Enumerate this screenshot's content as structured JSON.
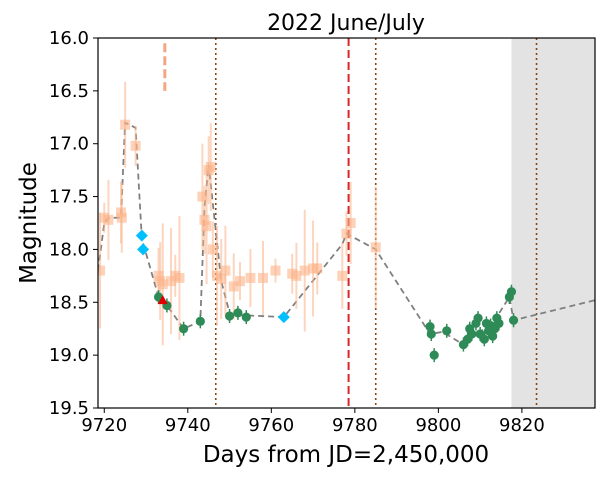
{
  "chart_data": {
    "type": "scatter",
    "title": "2022 June/July",
    "xlabel": "Days from JD=2,450,000",
    "ylabel": "Magnitude",
    "xlim": [
      9718.5,
      9837.5
    ],
    "ylim": [
      19.5,
      16.0
    ],
    "y_inverted": true,
    "grid": false,
    "x_ticks": [
      9720,
      9740,
      9760,
      9780,
      9800,
      9820
    ],
    "y_ticks": [
      16.0,
      16.5,
      17.0,
      17.5,
      18.0,
      18.5,
      19.0,
      19.5
    ],
    "shaded_region": {
      "x_start": 9817.5,
      "x_end": 9837.5,
      "color": "#e3e3e3"
    },
    "vertical_lines": [
      {
        "x": 9746.7,
        "style": "dotted",
        "color": "#8b4513"
      },
      {
        "x": 9778.5,
        "style": "dashed",
        "color": "#d62728"
      },
      {
        "x": 9785.0,
        "style": "dotted",
        "color": "#8b4513"
      },
      {
        "x": 9823.5,
        "style": "dotted",
        "color": "#8b4513"
      }
    ],
    "vertical_marker": {
      "x": 9734.5,
      "y_from": 16.05,
      "y_to": 16.5,
      "color": "#f4a582"
    },
    "series": [
      {
        "marker": "dashed-line",
        "color": "#808080",
        "x": [
          9718.5,
          9720,
          9721,
          9724,
          9725,
          9727.5,
          9729,
          9733,
          9735,
          9739,
          9743,
          9744,
          9745,
          9748,
          9750,
          9752,
          9763,
          9777,
          9778,
          9785,
          9798,
          9801,
          9806,
          9811,
          9813,
          9817,
          9818,
          9837.5
        ],
        "values": [
          18.2,
          17.75,
          17.7,
          17.7,
          16.8,
          16.85,
          17.9,
          18.45,
          18.53,
          18.75,
          18.68,
          17.6,
          17.2,
          18.3,
          18.6,
          18.62,
          18.64,
          17.95,
          17.85,
          18.0,
          18.8,
          18.78,
          18.9,
          18.75,
          18.7,
          18.45,
          18.67,
          18.48
        ]
      },
      {
        "marker": "orange-square",
        "color": "#fbb48a",
        "x": [
          9719,
          9720,
          9721,
          9724,
          9724.2,
          9725,
          9727.5,
          9733,
          9733.4,
          9734,
          9736,
          9737,
          9738,
          9743.5,
          9744,
          9744.5,
          9745,
          9745.5,
          9746,
          9747,
          9748,
          9749,
          9751,
          9752.5,
          9755,
          9758,
          9761,
          9765,
          9766,
          9768,
          9770,
          9771,
          9777,
          9778,
          9779,
          9785
        ],
        "values": [
          18.2,
          17.7,
          17.72,
          17.65,
          17.7,
          16.82,
          17.02,
          18.25,
          18.3,
          18.33,
          18.3,
          18.25,
          18.27,
          17.5,
          17.72,
          17.78,
          17.25,
          17.22,
          18.0,
          18.25,
          18.28,
          18.2,
          18.35,
          18.3,
          18.27,
          18.27,
          18.2,
          18.23,
          18.25,
          18.2,
          18.18,
          18.18,
          18.25,
          17.85,
          17.75,
          17.98
        ]
      },
      {
        "marker": "green-circle",
        "color": "#2e8b57",
        "x": [
          9733,
          9735,
          9739,
          9743,
          9750,
          9752,
          9754,
          9798,
          9798.3,
          9799,
          9802,
          9806,
          9807,
          9807.5,
          9808,
          9809,
          9809.5,
          9810,
          9811,
          9811.5,
          9812,
          9812.5,
          9813,
          9813.5,
          9814,
          9814.5,
          9817,
          9817.5,
          9818
        ],
        "values": [
          18.45,
          18.53,
          18.75,
          18.68,
          18.63,
          18.6,
          18.64,
          18.73,
          18.8,
          19.0,
          18.77,
          18.9,
          18.85,
          18.75,
          18.8,
          18.7,
          18.65,
          18.8,
          18.85,
          18.7,
          18.77,
          18.72,
          18.82,
          18.75,
          18.65,
          18.7,
          18.45,
          18.4,
          18.67
        ]
      },
      {
        "marker": "cyan-diamond",
        "color": "#00bfff",
        "x": [
          9729,
          9729.3,
          9763
        ],
        "values": [
          17.87,
          18.0,
          18.64
        ]
      },
      {
        "marker": "red-triangle",
        "color": "#e00000",
        "x": [
          9734
        ],
        "values": [
          18.48
        ]
      }
    ]
  }
}
